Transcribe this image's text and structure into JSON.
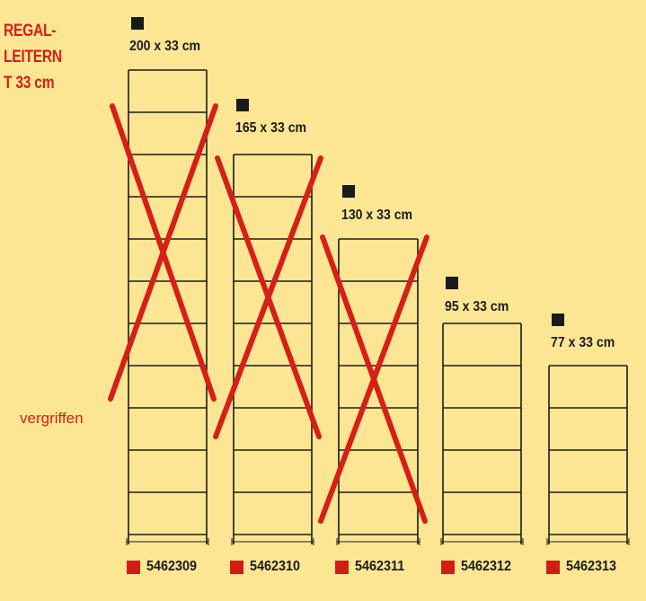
{
  "heading": {
    "line1": "REGAL-",
    "line2": "LEITERN",
    "line3": "T 33 cm"
  },
  "status_note": "vergriffen",
  "colors": {
    "background": "#fce693",
    "accent": "#d61f17",
    "ink": "#1c1c1c"
  },
  "ladders": [
    {
      "size": "200 x 33 cm",
      "code": "5462309",
      "rungs": 12,
      "crossed_out": true
    },
    {
      "size": "165 x 33 cm",
      "code": "5462310",
      "rungs": 10,
      "crossed_out": true
    },
    {
      "size": "130 x 33 cm",
      "code": "5462311",
      "rungs": 8,
      "crossed_out": true
    },
    {
      "size": "95 x 33 cm",
      "code": "5462312",
      "rungs": 6,
      "crossed_out": false
    },
    {
      "size": "77 x 33 cm",
      "code": "5462313",
      "rungs": 5,
      "crossed_out": false
    }
  ]
}
